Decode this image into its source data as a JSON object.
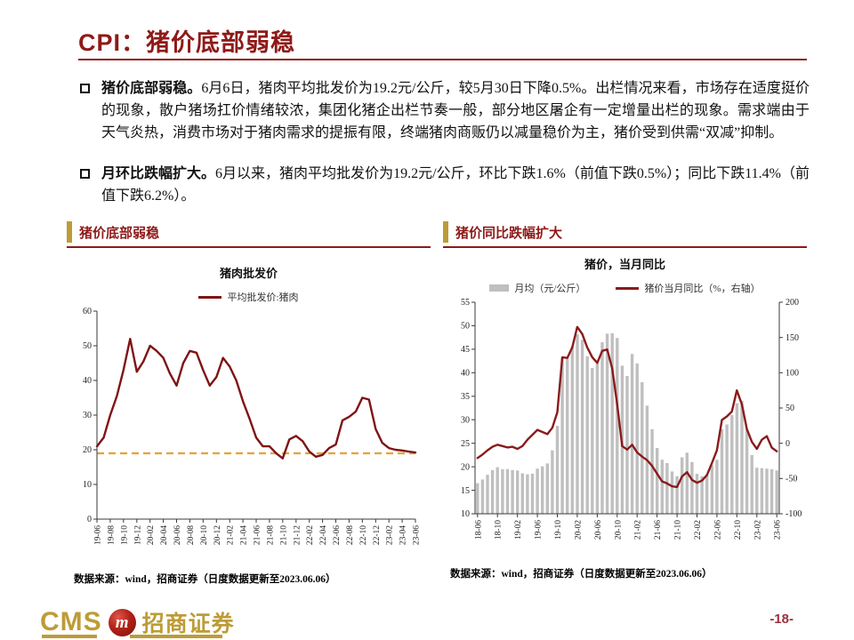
{
  "slide": {
    "title": "CPI：猪价底部弱稳",
    "page_number": "-18-",
    "bullets": [
      {
        "lead": "猪价底部弱稳。",
        "text": "6月6日，猪肉平均批发价为19.2元/公斤，较5月30日下降0.5%。出栏情况来看，市场存在适度挺价的现象，散户猪场扛价情绪较浓，集团化猪企出栏节奏一般，部分地区屠企有一定增量出栏的现象。需求端由于天气炎热，消费市场对于猪肉需求的提振有限，终端猪肉商贩仍以减量稳价为主，猪价受到供需“双减”抑制。"
      },
      {
        "lead": "月环比跌幅扩大。",
        "text": "6月以来，猪肉平均批发价为19.2元/公斤，环比下跌1.6%（前值下跌0.5%）；同比下跌11.4%（前值下跌6.2%）。"
      }
    ],
    "sections": [
      {
        "header": "猪价底部弱稳",
        "source": "数据来源：wind，招商证券（日度数据更新至2023.06.06）"
      },
      {
        "header": "猪价同比跌幅扩大",
        "source": "数据来源：wind，招商证券（日度数据更新至2023.06.06）"
      }
    ],
    "logo": {
      "cms": "CMS",
      "badge": "m",
      "cn": "招商证券"
    }
  },
  "colors": {
    "accent_red": "#8E1A18",
    "dark_red_line": "#7E1414",
    "gold": "#BD9C37",
    "dashed_gold": "#E8A33D",
    "bar_gray": "#BFBFBF",
    "page_red": "#9C2F3F"
  },
  "chart_data": [
    {
      "type": "line",
      "title": "猪肉批发价",
      "legend": [
        {
          "label": "平均批发价:猪肉",
          "swatch": "line",
          "color": "#7E1414"
        }
      ],
      "x": [
        "19-06",
        "19-07",
        "19-08",
        "19-09",
        "19-10",
        "19-11",
        "19-12",
        "20-01",
        "20-02",
        "20-03",
        "20-04",
        "20-05",
        "20-06",
        "20-07",
        "20-08",
        "20-09",
        "20-10",
        "20-11",
        "20-12",
        "21-01",
        "21-02",
        "21-03",
        "21-04",
        "21-05",
        "21-06",
        "21-07",
        "21-08",
        "21-09",
        "21-10",
        "21-11",
        "21-12",
        "22-01",
        "22-02",
        "22-03",
        "22-04",
        "22-05",
        "22-06",
        "22-07",
        "22-08",
        "22-09",
        "22-10",
        "22-11",
        "22-12",
        "23-01",
        "23-02",
        "23-03",
        "23-04",
        "23-05",
        "23-06"
      ],
      "series": [
        {
          "name": "平均批发价:猪肉",
          "axis": "left",
          "color": "#7E1414",
          "values": [
            21,
            23.5,
            30,
            35.5,
            43,
            52,
            42.5,
            45.5,
            50,
            48.5,
            46.5,
            42,
            38.5,
            45,
            48.5,
            48,
            43,
            38.5,
            41,
            46.5,
            44,
            40,
            34,
            29,
            23.5,
            21,
            21,
            19,
            17.5,
            23,
            24,
            22.5,
            19.5,
            18,
            18.5,
            20.5,
            21.5,
            28.5,
            29.5,
            31,
            35,
            34.5,
            26,
            22,
            20.5,
            20,
            19.8,
            19.5,
            19.2
          ]
        }
      ],
      "ref_line": 19,
      "ref_color": "#E8A33D",
      "ylim_left": [
        0,
        60
      ],
      "ytick_step_left": 10,
      "xtick_every": 2,
      "xlabel": "",
      "ylabel": ""
    },
    {
      "type": "bar-line",
      "title": "猪价，当月同比",
      "legend": [
        {
          "label": "月均（元/公斤）",
          "swatch": "bar",
          "color": "#BFBFBF"
        },
        {
          "label": "猪价当月同比（%，右轴）",
          "swatch": "line",
          "color": "#8B1A1A"
        }
      ],
      "x": [
        "18-06",
        "18-07",
        "18-08",
        "18-09",
        "18-10",
        "18-11",
        "18-12",
        "19-01",
        "19-02",
        "19-03",
        "19-04",
        "19-05",
        "19-06",
        "19-07",
        "19-08",
        "19-09",
        "19-10",
        "19-11",
        "19-12",
        "20-01",
        "20-02",
        "20-03",
        "20-04",
        "20-05",
        "20-06",
        "20-07",
        "20-08",
        "20-09",
        "20-10",
        "20-11",
        "20-12",
        "21-01",
        "21-02",
        "21-03",
        "21-04",
        "21-05",
        "21-06",
        "21-07",
        "21-08",
        "21-09",
        "21-10",
        "21-11",
        "21-12",
        "22-01",
        "22-02",
        "22-03",
        "22-04",
        "22-05",
        "22-06",
        "22-07",
        "22-08",
        "22-09",
        "22-10",
        "22-11",
        "22-12",
        "23-01",
        "23-02",
        "23-03",
        "23-04",
        "23-05",
        "23-06"
      ],
      "bars": {
        "name": "月均（元/公斤）",
        "axis": "left",
        "color": "#BFBFBF",
        "values": [
          16.5,
          17.3,
          18.3,
          19.3,
          19.9,
          19.5,
          19.5,
          19.3,
          19.2,
          18.6,
          18.4,
          18.5,
          19.6,
          20.1,
          20.7,
          23.5,
          28.7,
          43.2,
          43,
          45.5,
          48.2,
          47,
          43.5,
          41,
          42,
          46.5,
          48.3,
          48.4,
          47.4,
          41.5,
          39.3,
          44,
          42,
          38,
          33,
          28,
          24,
          21.5,
          20.8,
          19,
          18,
          22,
          23,
          21,
          18.5,
          18,
          18.2,
          20.3,
          21.5,
          28,
          29,
          31,
          33.5,
          34,
          28,
          22.5,
          19.8,
          19.7,
          19.6,
          19.5,
          19.2
        ]
      },
      "line": {
        "name": "猪价当月同比（%，右轴）",
        "axis": "right",
        "color": "#8B1A1A",
        "values": [
          -21,
          -16,
          -10,
          -5,
          -2,
          -4,
          -6,
          -5,
          -8,
          -4,
          5,
          12,
          19,
          16,
          13,
          22,
          44,
          122,
          121,
          136,
          165,
          155,
          136,
          122,
          114,
          131,
          133,
          106,
          55,
          -4,
          -9,
          -2,
          -13,
          -19,
          -24,
          -32,
          -43,
          -54,
          -57,
          -61,
          -62,
          -47,
          -41,
          -52,
          -56,
          -53,
          -45,
          -28,
          -10,
          33,
          38,
          45,
          75,
          55,
          20,
          2,
          -8,
          5,
          10,
          -6.2,
          -11.4
        ]
      },
      "ylim_left": [
        10,
        55
      ],
      "ytick_step_left": 5,
      "ylim_right": [
        -100,
        200
      ],
      "ytick_step_right": 50,
      "xtick_every": 4,
      "xlabel": "",
      "ylabel": ""
    }
  ]
}
